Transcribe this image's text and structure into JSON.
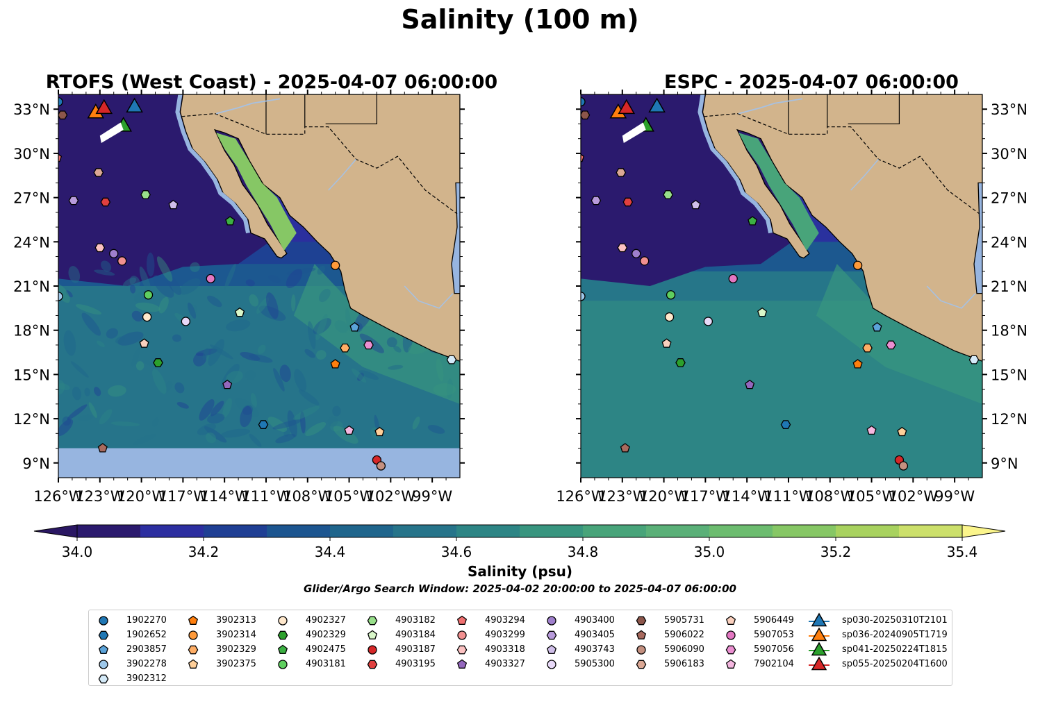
{
  "figure": {
    "title": "Salinity (100 m)",
    "search_window": "Glider/Argo Search Window: 2025-04-02 20:00:00 to 2025-04-07 06:00:00"
  },
  "map": {
    "extent": {
      "lon": [
        -126,
        -97
      ],
      "lat": [
        8,
        34
      ]
    },
    "lon_ticks": [
      "126°W",
      "123°W",
      "120°W",
      "117°W",
      "114°W",
      "111°W",
      "108°W",
      "105°W",
      "102°W",
      "99°W"
    ],
    "lat_ticks": [
      "9°N",
      "12°N",
      "15°N",
      "18°N",
      "21°N",
      "24°N",
      "27°N",
      "30°N",
      "33°N"
    ],
    "colors": {
      "land": "#d2b48c",
      "outside_range": "#97b5e0",
      "coast": "#000000",
      "rivers": "#a7c1e2",
      "borders": "#000000"
    }
  },
  "panels": [
    {
      "id": "rtofs",
      "title": "RTOFS (West Coast) - 2025-04-07 06:00:00",
      "lat_label_side": "left",
      "model": "RTOFS",
      "no_data_south_of_lat": 10
    },
    {
      "id": "espc",
      "title": "ESPC - 2025-04-07 06:00:00",
      "lat_label_side": "right",
      "model": "ESPC"
    }
  ],
  "colorbar": {
    "label": "Salinity (psu)",
    "ticks": [
      "34.0",
      "34.2",
      "34.4",
      "34.6",
      "34.8",
      "35.0",
      "35.2",
      "35.4"
    ],
    "levels": [
      34.0,
      34.1,
      34.2,
      34.3,
      34.4,
      34.5,
      34.6,
      34.7,
      34.8,
      34.9,
      35.0,
      35.1,
      35.2,
      35.3,
      35.4
    ],
    "colors": [
      "#2b1a6e",
      "#2c2ea0",
      "#1f3f94",
      "#1c5590",
      "#1f658c",
      "#26748a",
      "#2d8585",
      "#38957f",
      "#48a47a",
      "#5ab078",
      "#6cbc6f",
      "#86c765",
      "#a8d25f",
      "#cce06b"
    ],
    "under_color": "#2a1763",
    "over_color": "#fbf58c"
  },
  "legend": {
    "argo": [
      {
        "id": "1902270",
        "marker": "circle",
        "color": "#1f77b4",
        "lon": -126.0,
        "lat": 33.5
      },
      {
        "id": "1902652",
        "marker": "hexagon",
        "color": "#1f77b4",
        "lon": -111.2,
        "lat": 11.6
      },
      {
        "id": "2903857",
        "marker": "pentagon",
        "color": "#5ba3d9",
        "lon": -104.6,
        "lat": 18.2
      },
      {
        "id": "3902278",
        "marker": "circle",
        "color": "#9ec8ea",
        "lon": -126.0,
        "lat": 20.3
      },
      {
        "id": "3902312",
        "marker": "hexagon",
        "color": "#d4eaf8",
        "lon": -97.6,
        "lat": 16.0
      },
      {
        "id": "3902313",
        "marker": "pentagon",
        "color": "#ff7f0e",
        "lon": -106.0,
        "lat": 15.7
      },
      {
        "id": "3902314",
        "marker": "circle",
        "color": "#ff9a3a",
        "lon": -106.0,
        "lat": 22.4
      },
      {
        "id": "3902329",
        "marker": "hexagon",
        "color": "#ffae66",
        "lon": -105.3,
        "lat": 16.8
      },
      {
        "id": "3902375",
        "marker": "pentagon",
        "color": "#ffcf99",
        "lon": -102.8,
        "lat": 11.1
      },
      {
        "id": "4902327",
        "marker": "circle",
        "color": "#ffe8cc",
        "lon": -119.6,
        "lat": 18.9
      },
      {
        "id": "4902329",
        "marker": "hexagon",
        "color": "#2ca02c",
        "lon": -118.8,
        "lat": 15.8
      },
      {
        "id": "4902475",
        "marker": "pentagon",
        "color": "#3cb043",
        "lon": -113.6,
        "lat": 25.4
      },
      {
        "id": "4903181",
        "marker": "circle",
        "color": "#5fcf5f",
        "lon": -119.5,
        "lat": 20.4
      },
      {
        "id": "4903182",
        "marker": "hexagon",
        "color": "#98df8a",
        "lon": -119.7,
        "lat": 27.2
      },
      {
        "id": "4903184",
        "marker": "pentagon",
        "color": "#d9f7c9",
        "lon": -112.9,
        "lat": 19.2
      },
      {
        "id": "4903187",
        "marker": "circle",
        "color": "#d62728",
        "lon": -103.0,
        "lat": 9.2
      },
      {
        "id": "4903195",
        "marker": "hexagon",
        "color": "#e0403f",
        "lon": -122.6,
        "lat": 26.7
      },
      {
        "id": "4903294",
        "marker": "pentagon",
        "color": "#f07070",
        "lon": -126.1,
        "lat": 29.7
      },
      {
        "id": "4903299",
        "marker": "circle",
        "color": "#f29090",
        "lon": -121.4,
        "lat": 22.7
      },
      {
        "id": "4903318",
        "marker": "hexagon",
        "color": "#fcc2c2",
        "lon": -123.0,
        "lat": 23.6
      },
      {
        "id": "4903327",
        "marker": "pentagon",
        "color": "#9467bd",
        "lon": -113.8,
        "lat": 14.3
      },
      {
        "id": "4903400",
        "marker": "circle",
        "color": "#9f7fcc",
        "lon": -122.0,
        "lat": 23.2
      },
      {
        "id": "4903405",
        "marker": "hexagon",
        "color": "#b89bdb",
        "lon": -124.9,
        "lat": 26.8
      },
      {
        "id": "4903743",
        "marker": "pentagon",
        "color": "#d0bfe9",
        "lon": -117.7,
        "lat": 26.5
      },
      {
        "id": "5905300",
        "marker": "circle",
        "color": "#e8d9f8",
        "lon": -116.8,
        "lat": 18.6
      },
      {
        "id": "5905731",
        "marker": "hexagon",
        "color": "#8c564b",
        "lon": -125.7,
        "lat": 32.6
      },
      {
        "id": "5906022",
        "marker": "pentagon",
        "color": "#a86a5e",
        "lon": -122.8,
        "lat": 10.0
      },
      {
        "id": "5906090",
        "marker": "circle",
        "color": "#c49080",
        "lon": -102.7,
        "lat": 8.8
      },
      {
        "id": "5906183",
        "marker": "hexagon",
        "color": "#dba895",
        "lon": -123.1,
        "lat": 28.7
      },
      {
        "id": "5906449",
        "marker": "pentagon",
        "color": "#fad0be",
        "lon": -119.8,
        "lat": 17.1
      },
      {
        "id": "5907053",
        "marker": "circle",
        "color": "#e377c2",
        "lon": -115.0,
        "lat": 21.5
      },
      {
        "id": "5907056",
        "marker": "hexagon",
        "color": "#eb8fd1",
        "lon": -103.6,
        "lat": 17.0
      },
      {
        "id": "7902104",
        "marker": "pentagon",
        "color": "#f5b7e0",
        "lon": -105.0,
        "lat": 11.2
      }
    ],
    "gliders": [
      {
        "id": "sp030-20250310T2101",
        "color": "#1f77b4",
        "lon": -120.5,
        "lat": 33.2
      },
      {
        "id": "sp036-20240905T1719",
        "color": "#ff7f0e",
        "lon": -123.3,
        "lat": 32.8
      },
      {
        "id": "sp041-20250224T1815",
        "color": "#2ca02c",
        "lon": -121.3,
        "lat": 31.9
      },
      {
        "id": "sp055-20250204T1600",
        "color": "#d62728",
        "lon": -122.7,
        "lat": 33.1
      }
    ]
  }
}
